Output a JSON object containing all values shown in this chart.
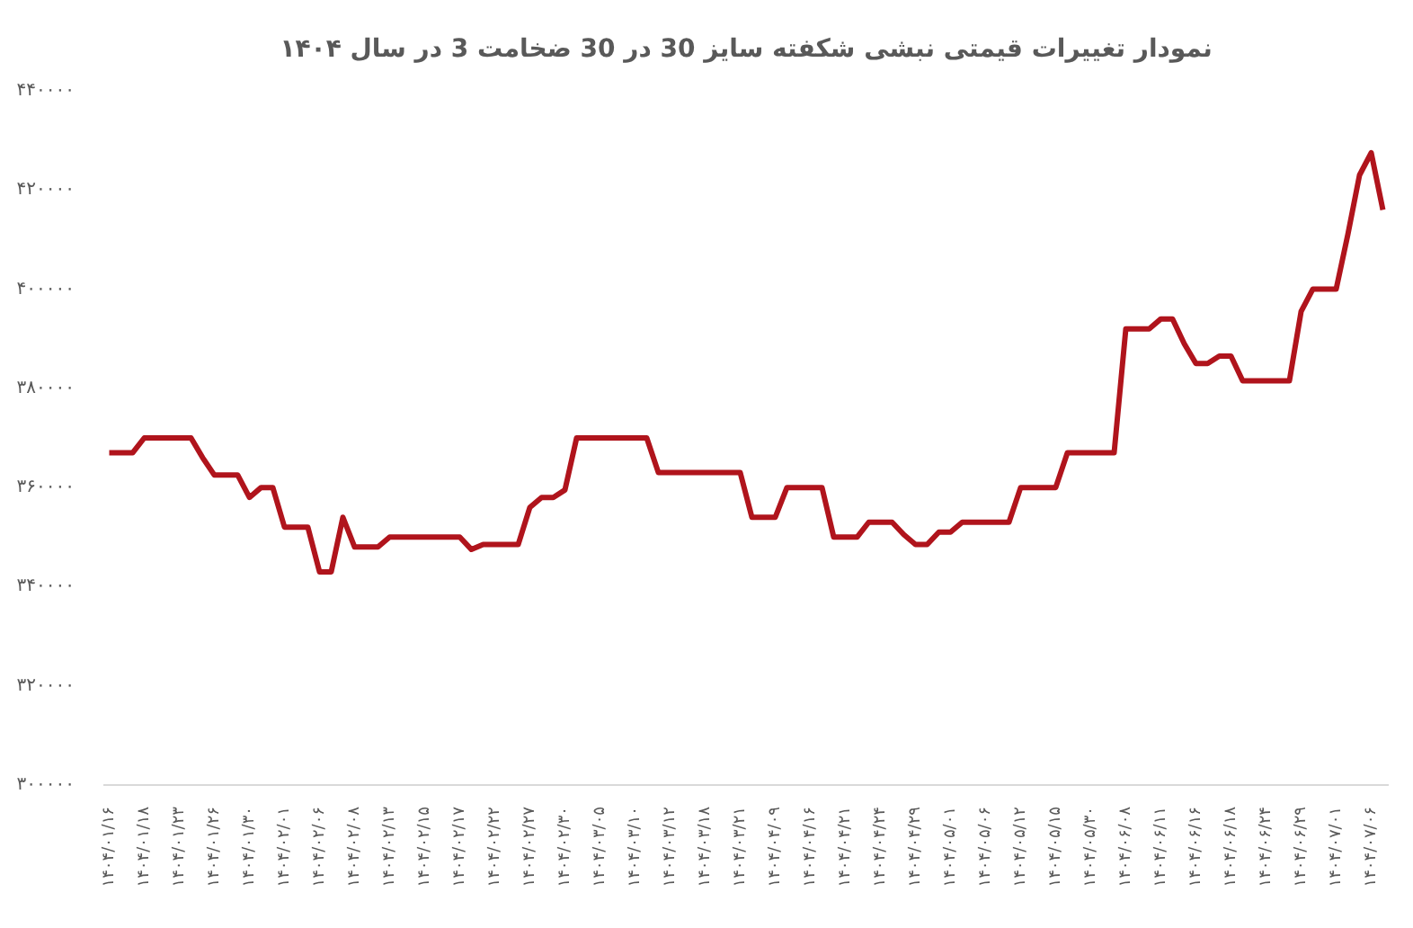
{
  "chart_data": {
    "type": "line",
    "title": "نمودار تغییرات قیمتی نبشی شکفته سایز 30 در 30 ضخامت 3 در سال ۱۴۰۴",
    "categories": [
      "۱۴۰۴/۰۱/۱۶",
      null,
      null,
      "۱۴۰۴/۰۱/۱۸",
      null,
      null,
      "۱۴۰۴/۰۱/۲۳",
      null,
      null,
      "۱۴۰۴/۰۱/۲۶",
      null,
      null,
      "۱۴۰۴/۰۱/۳۰",
      null,
      null,
      "۱۴۰۴/۰۲/۰۱",
      null,
      null,
      "۱۴۰۴/۰۲/۰۶",
      null,
      null,
      "۱۴۰۴/۰۲/۰۸",
      null,
      null,
      "۱۴۰۴/۰۲/۱۳",
      null,
      null,
      "۱۴۰۴/۰۲/۱۵",
      null,
      null,
      "۱۴۰۴/۰۲/۱۷",
      null,
      null,
      "۱۴۰۴/۰۲/۲۲",
      null,
      null,
      "۱۴۰۴/۰۲/۲۷",
      null,
      null,
      "۱۴۰۴/۰۲/۳۰",
      null,
      null,
      "۱۴۰۴/۰۳/۰۵",
      null,
      null,
      "۱۴۰۴/۰۳/۱۰",
      null,
      null,
      "۱۴۰۴/۰۳/۱۲",
      null,
      null,
      "۱۴۰۴/۰۳/۱۸",
      null,
      null,
      "۱۴۰۴/۰۳/۲۱",
      null,
      null,
      "۱۴۰۴/۰۴/۰۹",
      null,
      null,
      "۱۴۰۴/۰۴/۱۶",
      null,
      null,
      "۱۴۰۴/۰۴/۲۱",
      null,
      null,
      "۱۴۰۴/۰۴/۲۴",
      null,
      null,
      "۱۴۰۴/۰۴/۲۹",
      null,
      null,
      "۱۴۰۴/۰۵/۰۱",
      null,
      null,
      "۱۴۰۴/۰۵/۰۶",
      null,
      null,
      "۱۴۰۴/۰۵/۱۲",
      null,
      null,
      "۱۴۰۴/۰۵/۱۵",
      null,
      null,
      "۱۴۰۴/۰۵/۳۰",
      null,
      null,
      "۱۴۰۴/۰۶/۰۸",
      null,
      null,
      "۱۴۰۴/۰۶/۱۱",
      null,
      null,
      "۱۴۰۴/۰۶/۱۶",
      null,
      null,
      "۱۴۰۴/۰۶/۱۸",
      null,
      null,
      "۱۴۰۴/۰۶/۲۴",
      null,
      null,
      "۱۴۰۴/۰۶/۲۹",
      null,
      null,
      "۱۴۰۴/۰۷/۰۱",
      null,
      null,
      "۱۴۰۴/۰۷/۰۶",
      null
    ],
    "values": [
      367000,
      367000,
      367000,
      370000,
      370000,
      370000,
      370000,
      370000,
      366000,
      362500,
      362500,
      362500,
      358000,
      360000,
      360000,
      352000,
      352000,
      352000,
      343000,
      343000,
      354000,
      348000,
      348000,
      348000,
      350000,
      350000,
      350000,
      350000,
      350000,
      350000,
      350000,
      347500,
      348500,
      348500,
      348500,
      348500,
      356000,
      358000,
      358000,
      359500,
      370000,
      370000,
      370000,
      370000,
      370000,
      370000,
      370000,
      363000,
      363000,
      363000,
      363000,
      363000,
      363000,
      363000,
      363000,
      354000,
      354000,
      354000,
      360000,
      360000,
      360000,
      360000,
      350000,
      350000,
      350000,
      353000,
      353000,
      353000,
      350500,
      348500,
      348500,
      351000,
      351000,
      353000,
      353000,
      353000,
      353000,
      353000,
      360000,
      360000,
      360000,
      360000,
      367000,
      367000,
      367000,
      367000,
      367000,
      392000,
      392000,
      392000,
      394000,
      394000,
      389000,
      385000,
      385000,
      386500,
      386500,
      381500,
      381500,
      381500,
      381500,
      381500,
      395500,
      400000,
      400000,
      400000,
      411000,
      423000,
      427500,
      416000
    ],
    "color": "#b0141c",
    "ylim": [
      300000,
      440000
    ],
    "yticks": [
      {
        "value": 300000,
        "label": "۳۰۰۰۰۰"
      },
      {
        "value": 320000,
        "label": "۳۲۰۰۰۰"
      },
      {
        "value": 340000,
        "label": "۳۴۰۰۰۰"
      },
      {
        "value": 360000,
        "label": "۳۶۰۰۰۰"
      },
      {
        "value": 380000,
        "label": "۳۸۰۰۰۰"
      },
      {
        "value": 400000,
        "label": "۴۰۰۰۰۰"
      },
      {
        "value": 420000,
        "label": "۴۲۰۰۰۰"
      },
      {
        "value": 440000,
        "label": "۴۴۰۰۰۰"
      }
    ],
    "grid": false
  }
}
